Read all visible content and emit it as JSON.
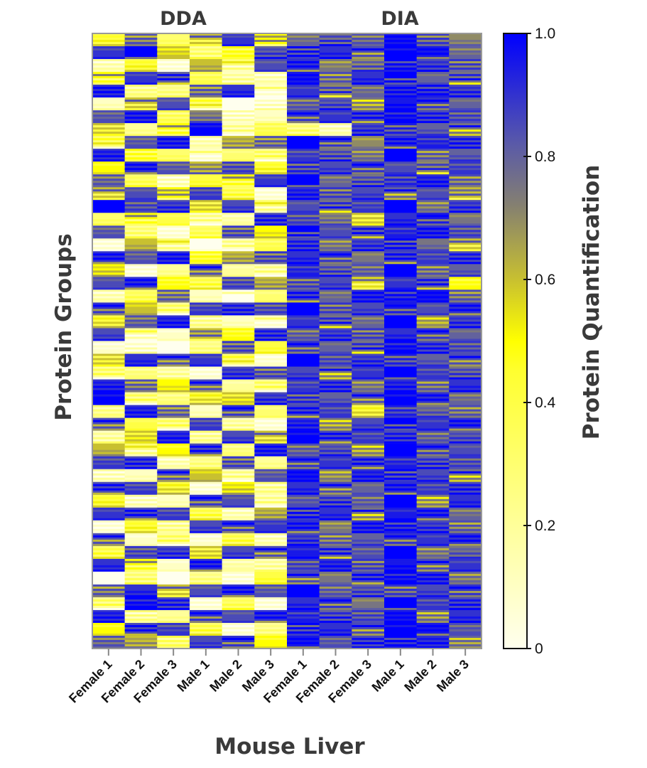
{
  "chart_data": {
    "type": "heatmap",
    "groups": [
      {
        "label": "DDA",
        "columns": [
          0,
          1,
          2,
          3,
          4,
          5
        ]
      },
      {
        "label": "DIA",
        "columns": [
          6,
          7,
          8,
          9,
          10,
          11
        ]
      }
    ],
    "categories": [
      "Female 1",
      "Female 2",
      "Female 3",
      "Male 1",
      "Male 2",
      "Male 3",
      "Female 1",
      "Female 2",
      "Female 3",
      "Male 1",
      "Male 2",
      "Male 3"
    ],
    "xlabel": "Mouse Liver",
    "ylabel": "Protein Groups",
    "colorbar": {
      "label": "Protein Quantification",
      "range": [
        0,
        1
      ],
      "ticks": [
        "0",
        "0.2",
        "0.4",
        "0.6",
        "0.8",
        "1.0"
      ],
      "stops": [
        [
          0,
          "#ffffee"
        ],
        [
          0.45,
          "#ffff30"
        ],
        [
          0.5,
          "#ffff00"
        ],
        [
          0.6,
          "#c8c030"
        ],
        [
          0.72,
          "#858070"
        ],
        [
          0.82,
          "#5a5aa8"
        ],
        [
          1,
          "#0000ff"
        ]
      ]
    },
    "values": [
      [
        0.4,
        0.85,
        0.3,
        0.6,
        0.9,
        0.5,
        0.8,
        0.75,
        0.85,
        0.95,
        0.9,
        0.7
      ],
      [
        0.9,
        1.0,
        0.6,
        0.2,
        0.5,
        0.8,
        1.0,
        0.9,
        0.85,
        1.0,
        0.95,
        0.8
      ],
      [
        0.2,
        0.4,
        0.1,
        0.6,
        0.3,
        0.85,
        0.9,
        0.75,
        0.7,
        1.0,
        0.85,
        0.9
      ],
      [
        0.5,
        0.9,
        0.8,
        0.4,
        0.1,
        0.2,
        0.95,
        0.85,
        0.9,
        1.0,
        0.8,
        0.75
      ],
      [
        0.9,
        0.3,
        0.2,
        0.85,
        0.9,
        0.1,
        0.9,
        0.7,
        0.8,
        0.9,
        1.0,
        0.85
      ],
      [
        0.1,
        0.6,
        0.85,
        0.3,
        0.0,
        0.0,
        0.85,
        0.8,
        0.75,
        0.95,
        0.9,
        0.8
      ],
      [
        0.85,
        0.9,
        0.4,
        0.7,
        0.2,
        0.1,
        0.9,
        0.9,
        0.85,
        1.0,
        0.85,
        0.9
      ],
      [
        0.6,
        0.2,
        0.5,
        1.0,
        0.1,
        0.4,
        0.2,
        0.2,
        0.85,
        0.95,
        0.8,
        0.75
      ],
      [
        0.3,
        0.85,
        0.9,
        0.2,
        0.6,
        0.85,
        1.0,
        0.9,
        0.7,
        0.9,
        0.95,
        0.85
      ],
      [
        0.9,
        0.5,
        0.3,
        0.1,
        0.3,
        0.2,
        0.9,
        0.75,
        0.8,
        1.0,
        0.85,
        0.8
      ],
      [
        0.5,
        0.9,
        0.85,
        0.6,
        0.9,
        0.4,
        0.95,
        0.85,
        0.9,
        0.85,
        0.7,
        0.9
      ],
      [
        0.85,
        0.3,
        0.2,
        0.4,
        0.5,
        0.9,
        1.0,
        0.8,
        0.75,
        0.95,
        0.9,
        0.85
      ],
      [
        0.6,
        0.85,
        0.5,
        0.9,
        0.3,
        0.1,
        0.9,
        0.9,
        0.85,
        0.8,
        0.85,
        0.6
      ],
      [
        1.0,
        0.9,
        0.85,
        0.6,
        0.85,
        0.3,
        0.85,
        0.75,
        0.9,
        1.0,
        0.8,
        0.85
      ],
      [
        0.3,
        0.5,
        0.4,
        0.1,
        0.2,
        0.85,
        0.9,
        0.7,
        0.6,
        0.9,
        0.95,
        0.75
      ],
      [
        0.85,
        0.2,
        0.1,
        0.3,
        0.9,
        0.5,
        1.0,
        0.85,
        0.8,
        0.95,
        0.9,
        0.9
      ],
      [
        0.1,
        0.6,
        0.3,
        0.0,
        0.1,
        0.4,
        0.85,
        0.8,
        0.85,
        1.0,
        0.75,
        0.6
      ],
      [
        0.9,
        0.85,
        0.9,
        0.5,
        0.6,
        0.9,
        0.9,
        0.9,
        0.75,
        0.85,
        0.9,
        0.85
      ],
      [
        0.5,
        0.1,
        0.2,
        0.85,
        0.2,
        0.1,
        0.95,
        0.75,
        0.85,
        1.0,
        0.85,
        0.8
      ],
      [
        0.85,
        0.9,
        0.5,
        0.3,
        0.9,
        0.6,
        0.9,
        0.85,
        0.55,
        0.9,
        0.8,
        0.5
      ],
      [
        0.2,
        0.3,
        0.85,
        0.1,
        0.0,
        0.3,
        0.85,
        0.8,
        0.9,
        1.0,
        0.95,
        0.85
      ],
      [
        0.9,
        0.6,
        0.2,
        0.9,
        0.85,
        0.9,
        1.0,
        0.9,
        0.85,
        0.95,
        0.85,
        0.9
      ],
      [
        0.4,
        0.85,
        0.9,
        0.3,
        0.1,
        0.1,
        0.9,
        0.75,
        0.8,
        1.0,
        0.7,
        0.85
      ],
      [
        0.85,
        0.2,
        0.1,
        0.6,
        0.5,
        0.85,
        0.85,
        0.85,
        0.9,
        0.9,
        0.9,
        0.8
      ],
      [
        0.1,
        0.0,
        0.0,
        0.2,
        0.9,
        0.4,
        0.9,
        0.8,
        0.75,
        1.0,
        0.85,
        0.9
      ],
      [
        0.6,
        0.9,
        0.85,
        0.9,
        0.3,
        0.1,
        1.0,
        0.9,
        0.85,
        0.95,
        0.8,
        0.85
      ],
      [
        0.2,
        0.3,
        0.1,
        0.1,
        0.85,
        0.9,
        0.85,
        0.75,
        0.9,
        1.0,
        0.9,
        0.75
      ],
      [
        0.9,
        0.85,
        0.5,
        0.85,
        0.2,
        0.2,
        0.9,
        0.85,
        0.8,
        0.9,
        0.85,
        0.9
      ],
      [
        1.0,
        0.2,
        0.3,
        0.4,
        0.6,
        0.85,
        0.95,
        0.8,
        0.85,
        1.0,
        0.9,
        0.8
      ],
      [
        0.3,
        0.9,
        0.85,
        0.1,
        0.9,
        0.3,
        0.85,
        0.9,
        0.4,
        0.95,
        0.75,
        0.85
      ],
      [
        0.85,
        0.4,
        0.2,
        0.9,
        0.1,
        0.1,
        0.9,
        0.75,
        0.85,
        1.0,
        0.9,
        0.9
      ],
      [
        0.1,
        0.6,
        0.9,
        0.3,
        0.85,
        0.6,
        1.0,
        0.85,
        0.9,
        0.85,
        0.85,
        0.8
      ],
      [
        0.6,
        0.3,
        0.5,
        0.85,
        0.3,
        0.9,
        0.85,
        0.8,
        0.75,
        1.0,
        0.9,
        0.85
      ],
      [
        0.9,
        0.85,
        0.2,
        0.2,
        0.9,
        0.2,
        0.9,
        0.9,
        0.85,
        0.95,
        0.8,
        0.9
      ],
      [
        0.2,
        0.1,
        0.85,
        0.6,
        0.1,
        0.85,
        0.95,
        0.75,
        0.9,
        1.0,
        0.85,
        0.75
      ],
      [
        0.85,
        0.9,
        0.4,
        0.1,
        0.5,
        0.3,
        0.9,
        0.85,
        0.8,
        0.9,
        0.9,
        0.85
      ],
      [
        0.4,
        0.2,
        0.1,
        0.9,
        0.85,
        0.1,
        0.85,
        0.8,
        0.85,
        1.0,
        0.75,
        0.9
      ],
      [
        0.9,
        0.85,
        0.9,
        0.3,
        0.2,
        0.6,
        1.0,
        0.9,
        0.75,
        0.95,
        0.9,
        0.8
      ],
      [
        0.1,
        0.4,
        0.3,
        0.85,
        0.9,
        0.9,
        0.9,
        0.75,
        0.9,
        1.0,
        0.85,
        0.85
      ],
      [
        0.85,
        0.1,
        0.2,
        0.1,
        0.3,
        0.2,
        0.85,
        0.85,
        0.8,
        0.9,
        0.9,
        0.9
      ],
      [
        0.3,
        0.9,
        0.85,
        0.6,
        0.85,
        0.85,
        0.95,
        0.8,
        0.85,
        1.0,
        0.8,
        0.75
      ],
      [
        0.9,
        0.5,
        0.1,
        0.9,
        0.2,
        0.1,
        0.9,
        0.9,
        0.9,
        0.95,
        0.85,
        0.9
      ],
      [
        0.0,
        0.2,
        0.0,
        0.2,
        0.1,
        0.4,
        0.85,
        0.75,
        0.85,
        1.0,
        0.9,
        0.8
      ],
      [
        0.85,
        0.9,
        0.6,
        0.85,
        0.9,
        0.85,
        1.0,
        0.85,
        0.8,
        0.9,
        0.85,
        0.9
      ],
      [
        0.2,
        1.0,
        0.85,
        0.1,
        0.3,
        0.1,
        0.9,
        0.9,
        0.75,
        1.0,
        0.9,
        0.85
      ],
      [
        0.9,
        0.3,
        0.2,
        0.9,
        0.85,
        0.9,
        0.95,
        0.8,
        0.9,
        0.95,
        0.8,
        0.9
      ],
      [
        0.5,
        0.85,
        0.9,
        0.3,
        0.1,
        0.2,
        1.0,
        0.9,
        0.85,
        1.0,
        0.95,
        0.85
      ],
      [
        0.85,
        0.6,
        0.4,
        0.85,
        0.9,
        0.5,
        0.95,
        0.85,
        0.85,
        1.0,
        0.9,
        0.8
      ]
    ]
  }
}
